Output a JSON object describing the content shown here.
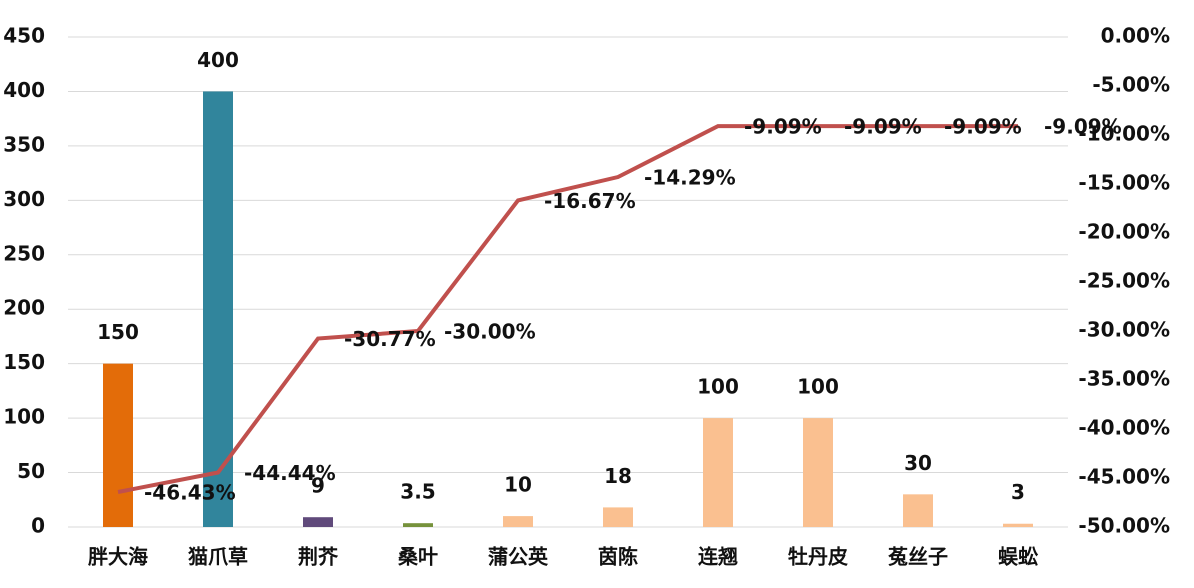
{
  "chart_data": {
    "type": "bar-line",
    "categories": [
      "胖大海",
      "猫爪草",
      "荆芥",
      "桑叶",
      "蒲公英",
      "茵陈",
      "连翘",
      "牡丹皮",
      "菟丝子",
      "蜈蚣"
    ],
    "bars": {
      "values": [
        150,
        400,
        9,
        3.5,
        10,
        18,
        100,
        100,
        30,
        3
      ],
      "colors": [
        "#e36c09",
        "#31859c",
        "#604a7b",
        "#76923c",
        "#fac090",
        "#fac090",
        "#fac090",
        "#fac090",
        "#fac090",
        "#fac090"
      ]
    },
    "line": {
      "axis": "y2",
      "color": "#c0504d",
      "values": [
        -46.43,
        -44.44,
        -30.77,
        -30.0,
        -16.67,
        -14.29,
        -9.09,
        -9.09,
        -9.09,
        -9.09
      ],
      "value_labels": [
        "-46.43%",
        "-44.44%",
        "-30.77%",
        "-30.00%",
        "-16.67%",
        "-14.29%",
        "-9.09%",
        "-9.09%",
        "-9.09%",
        "-9.09%"
      ]
    },
    "ylim": [
      0,
      450
    ],
    "yticks": [
      0,
      50,
      100,
      150,
      200,
      250,
      300,
      350,
      400,
      450
    ],
    "y2lim": [
      -50,
      0
    ],
    "y2ticks": [
      {
        "value": 0,
        "label": "0.00%"
      },
      {
        "value": -5,
        "label": "-5.00%"
      },
      {
        "value": -10,
        "label": "-10.00%"
      },
      {
        "value": -15,
        "label": "-15.00%"
      },
      {
        "value": -20,
        "label": "-20.00%"
      },
      {
        "value": -25,
        "label": "-25.00%"
      },
      {
        "value": -30,
        "label": "-30.00%"
      },
      {
        "value": -35,
        "label": "-35.00%"
      },
      {
        "value": -40,
        "label": "-40.00%"
      },
      {
        "value": -45,
        "label": "-45.00%"
      },
      {
        "value": -50,
        "label": "-50.00%"
      }
    ],
    "grid": true
  }
}
